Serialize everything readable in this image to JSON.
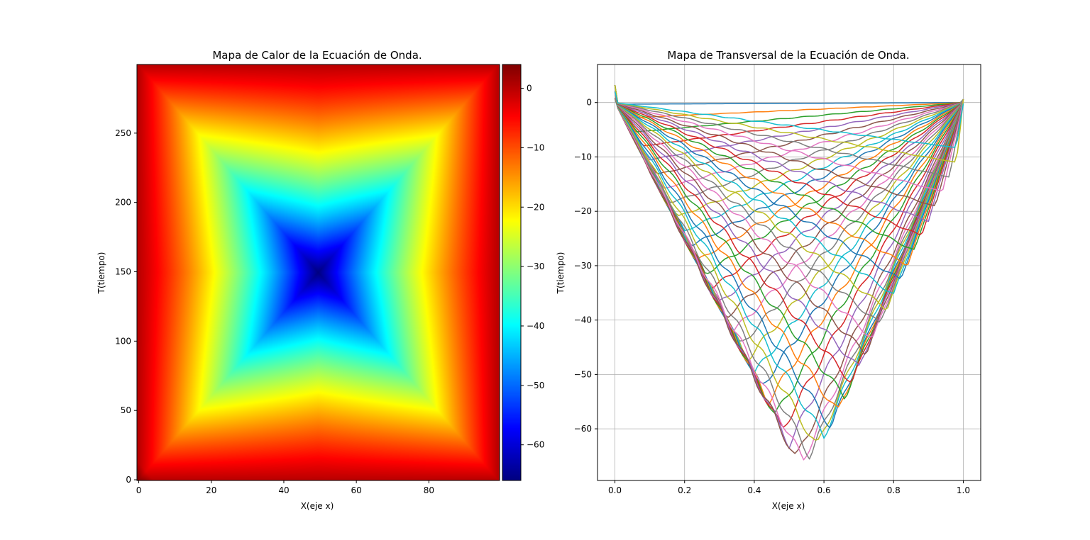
{
  "chart_data": [
    {
      "type": "heatmap",
      "title": "Mapa de Calor de la Ecuación de Onda.",
      "xlabel": "X(eje x)",
      "ylabel": "T(tiempo)",
      "colormap": "jet",
      "grid": false,
      "xlim": [
        -0.5,
        99.5
      ],
      "ylim": [
        299.5,
        -0.5
      ],
      "xticks": [
        0,
        20,
        40,
        60,
        80
      ],
      "yticks": [
        0,
        50,
        100,
        150,
        200,
        250
      ],
      "colorbar": {
        "position": "right",
        "range": [
          -66,
          4
        ],
        "ticks": [
          0,
          -10,
          -20,
          -30,
          -40,
          -50,
          -60
        ]
      },
      "field": {
        "x_points": 100,
        "t_points": 300,
        "min_value": -66,
        "min_location": {
          "x": 49,
          "t": 150
        },
        "max_value": 3.5,
        "boundary_value": 0
      }
    },
    {
      "type": "line",
      "title": "Mapa de Transversal de la Ecuación de Onda.",
      "xlabel": "X(eje x)",
      "ylabel": "T(tiempo)",
      "grid": true,
      "xlim": [
        -0.05,
        1.05
      ],
      "ylim": [
        -69.5,
        7
      ],
      "xticks": [
        0.0,
        0.2,
        0.4,
        0.6,
        0.8,
        1.0
      ],
      "yticks": [
        0,
        -10,
        -20,
        -30,
        -40,
        -50,
        -60
      ],
      "series_count": 50,
      "series_colors": [
        "#1f77b4",
        "#ff7f0e",
        "#2ca02c",
        "#d62728",
        "#9467bd",
        "#8c564b",
        "#e377c2",
        "#7f7f7f",
        "#bcbd22",
        "#17becf"
      ],
      "vertex_points": [
        [
          0.02,
          -0.3
        ],
        [
          0.04,
          -2.8
        ],
        [
          0.06,
          -5.4
        ],
        [
          0.08,
          -8.0
        ],
        [
          0.1,
          -10.5
        ],
        [
          0.12,
          -13.2
        ],
        [
          0.14,
          -15.8
        ],
        [
          0.16,
          -18.4
        ],
        [
          0.18,
          -21.0
        ],
        [
          0.2,
          -23.6
        ],
        [
          0.22,
          -26.3
        ],
        [
          0.24,
          -28.9
        ],
        [
          0.26,
          -31.5
        ],
        [
          0.28,
          -34.1
        ],
        [
          0.3,
          -36.8
        ],
        [
          0.32,
          -39.4
        ],
        [
          0.34,
          -42.0
        ],
        [
          0.36,
          -44.6
        ],
        [
          0.38,
          -47.2
        ],
        [
          0.4,
          -49.8
        ],
        [
          0.42,
          -52.4
        ],
        [
          0.44,
          -55.0
        ],
        [
          0.46,
          -57.6
        ],
        [
          0.48,
          -60.2
        ],
        [
          0.5,
          -62.8
        ],
        [
          0.52,
          -65.5
        ],
        [
          0.54,
          -65.8
        ],
        [
          0.56,
          -65.0
        ],
        [
          0.58,
          -63.3
        ],
        [
          0.6,
          -61.4
        ],
        [
          0.62,
          -59.6
        ],
        [
          0.64,
          -56.9
        ],
        [
          0.66,
          -54.2
        ],
        [
          0.68,
          -51.5
        ],
        [
          0.7,
          -48.8
        ],
        [
          0.72,
          -46.1
        ],
        [
          0.74,
          -43.4
        ],
        [
          0.76,
          -40.7
        ],
        [
          0.78,
          -38.0
        ],
        [
          0.8,
          -35.3
        ],
        [
          0.82,
          -32.6
        ],
        [
          0.84,
          -29.9
        ],
        [
          0.86,
          -27.2
        ],
        [
          0.88,
          -24.5
        ],
        [
          0.9,
          -21.8
        ],
        [
          0.92,
          -19.1
        ],
        [
          0.94,
          -16.4
        ],
        [
          0.96,
          -13.7
        ],
        [
          0.98,
          -11.0
        ],
        [
          0.98,
          -8.3
        ]
      ]
    }
  ]
}
